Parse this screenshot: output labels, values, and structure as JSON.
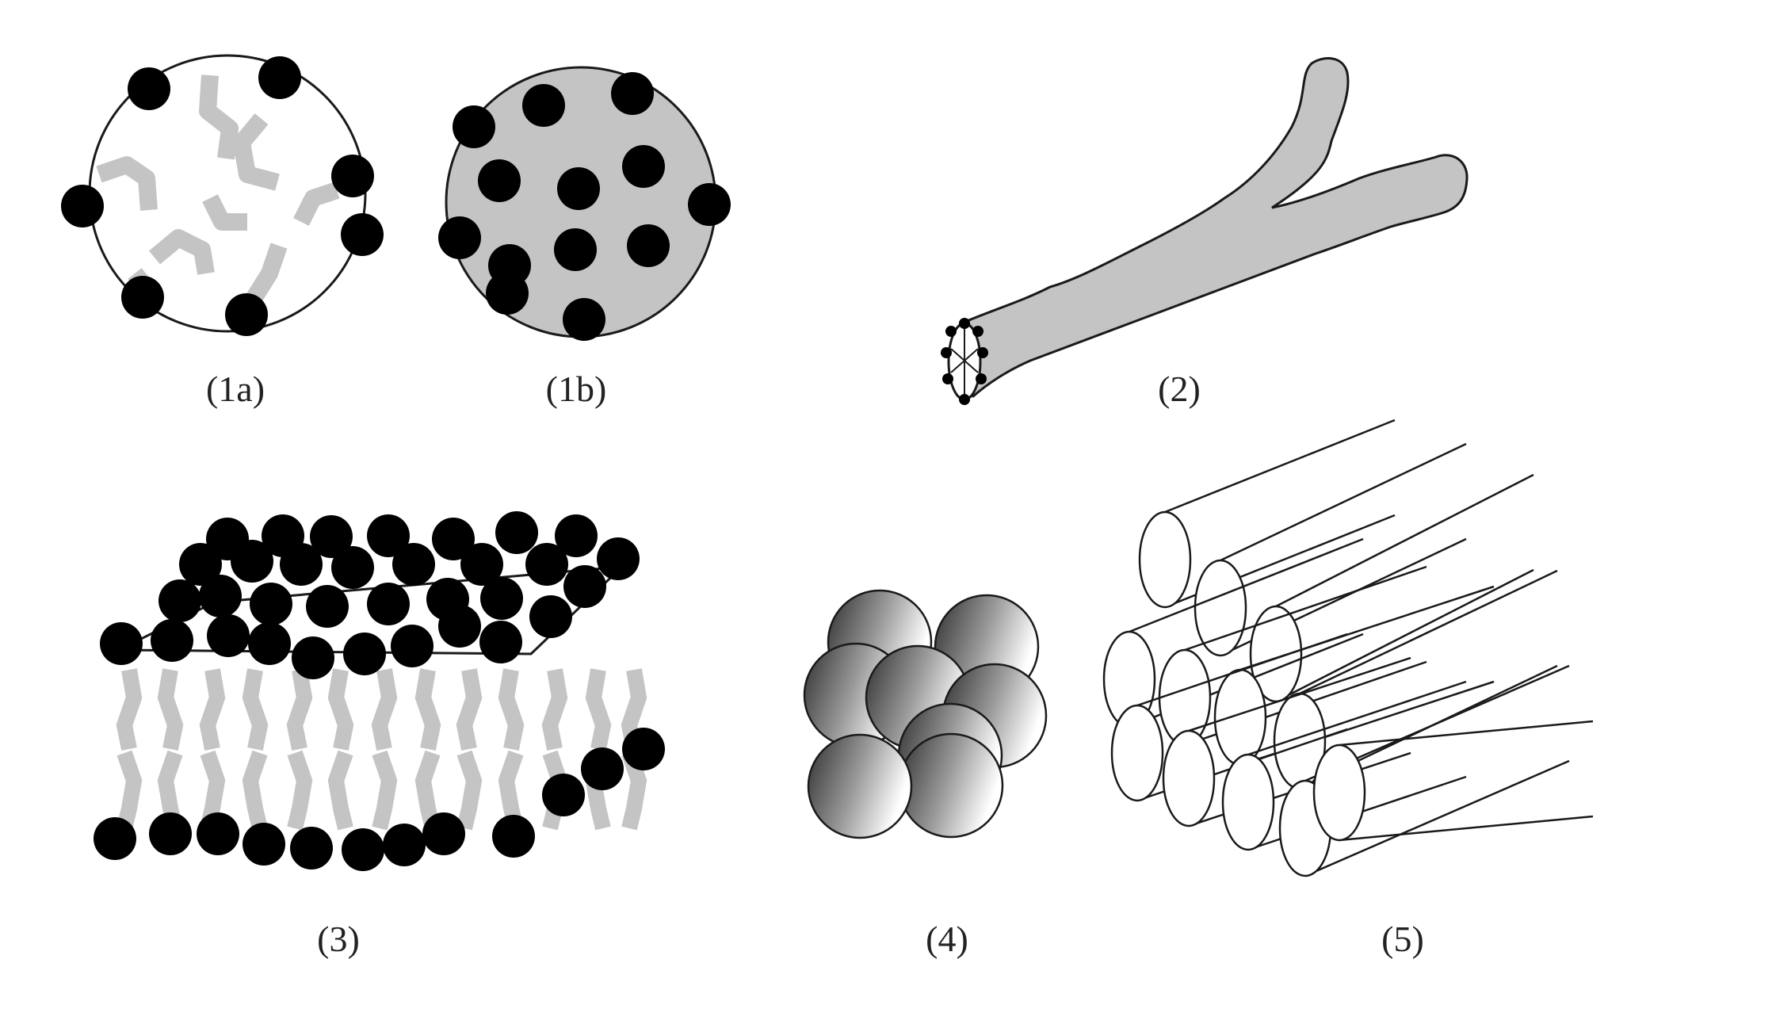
{
  "colors": {
    "head": "#000000",
    "tail": "#c4c4c4",
    "outline": "#1a1a1a",
    "rod_face": "#ffffff",
    "sphere_dark": "#2e2e2e",
    "sphere_light": "#ffffff"
  },
  "panels": [
    {
      "id": "1a",
      "label": "(1a)"
    },
    {
      "id": "1b",
      "label": "(1b)"
    },
    {
      "id": "2",
      "label": "(2)"
    },
    {
      "id": "3",
      "label": "(3)"
    },
    {
      "id": "4",
      "label": "(4)"
    },
    {
      "id": "5",
      "label": "(5)"
    }
  ]
}
